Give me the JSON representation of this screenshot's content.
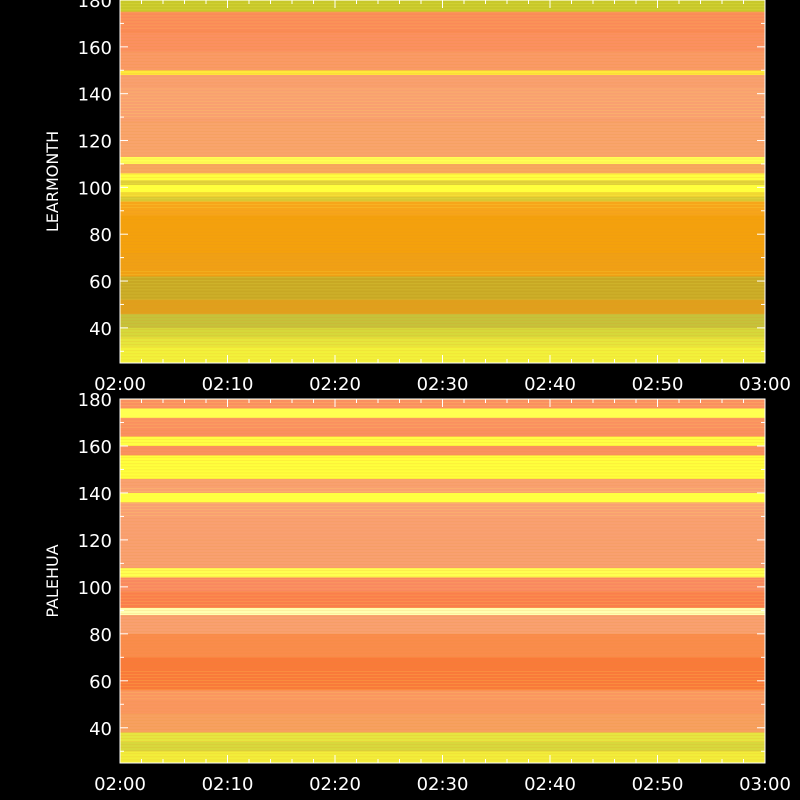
{
  "chart_data": [
    {
      "type": "heatmap",
      "ylabel": "LEARMONTH",
      "x_ticks": [
        "02:00",
        "02:10",
        "02:20",
        "02:30",
        "02:40",
        "02:50",
        "03:00"
      ],
      "xlim": [
        "02:00",
        "03:00"
      ],
      "y_ticks": [
        40,
        60,
        80,
        100,
        120,
        140,
        160,
        180
      ],
      "ylim": [
        25,
        180
      ],
      "grid": false,
      "frequency_bands": [
        {
          "from": 25,
          "to": 32,
          "color": "#f2f23a"
        },
        {
          "from": 32,
          "to": 36,
          "color": "#e6e63c"
        },
        {
          "from": 36,
          "to": 40,
          "color": "#d6d83a"
        },
        {
          "from": 40,
          "to": 46,
          "color": "#c6c23a"
        },
        {
          "from": 46,
          "to": 52,
          "color": "#e0a01c"
        },
        {
          "from": 52,
          "to": 62,
          "color": "#c8a824"
        },
        {
          "from": 62,
          "to": 72,
          "color": "#f0a014"
        },
        {
          "from": 72,
          "to": 88,
          "color": "#f4a10c"
        },
        {
          "from": 88,
          "to": 94,
          "color": "#f7a51a"
        },
        {
          "from": 94,
          "to": 96,
          "color": "#d8c832"
        },
        {
          "from": 96,
          "to": 98,
          "color": "#f2d830"
        },
        {
          "from": 98,
          "to": 101,
          "color": "#ffff3c"
        },
        {
          "from": 101,
          "to": 103,
          "color": "#e0d038"
        },
        {
          "from": 103,
          "to": 106,
          "color": "#ffff40"
        },
        {
          "from": 106,
          "to": 110,
          "color": "#f7a860"
        },
        {
          "from": 110,
          "to": 113,
          "color": "#ffff55"
        },
        {
          "from": 113,
          "to": 128,
          "color": "#f9a46c"
        },
        {
          "from": 128,
          "to": 148,
          "color": "#f9a070"
        },
        {
          "from": 148,
          "to": 150,
          "color": "#ffe83a"
        },
        {
          "from": 150,
          "to": 158,
          "color": "#fa9a66"
        },
        {
          "from": 158,
          "to": 166,
          "color": "#fb9060"
        },
        {
          "from": 166,
          "to": 175,
          "color": "#fa8a58"
        },
        {
          "from": 175,
          "to": 180,
          "color": "#c8c82a"
        }
      ]
    },
    {
      "type": "heatmap",
      "ylabel": "PALEHUA",
      "x_ticks": [
        "02:00",
        "02:10",
        "02:20",
        "02:30",
        "02:40",
        "02:50",
        "03:00"
      ],
      "xlim": [
        "02:00",
        "03:00"
      ],
      "y_ticks": [
        40,
        60,
        80,
        100,
        120,
        140,
        160,
        180
      ],
      "ylim": [
        25,
        180
      ],
      "grid": false,
      "frequency_bands": [
        {
          "from": 25,
          "to": 30,
          "color": "#f2ee3a"
        },
        {
          "from": 30,
          "to": 34,
          "color": "#d8d83c"
        },
        {
          "from": 34,
          "to": 38,
          "color": "#e6e640"
        },
        {
          "from": 38,
          "to": 46,
          "color": "#f7a060"
        },
        {
          "from": 46,
          "to": 56,
          "color": "#fa9660"
        },
        {
          "from": 56,
          "to": 70,
          "color": "#f97a3a"
        },
        {
          "from": 70,
          "to": 80,
          "color": "#fa8c4c"
        },
        {
          "from": 80,
          "to": 88,
          "color": "#f9a070"
        },
        {
          "from": 88,
          "to": 91,
          "color": "#ffffb0"
        },
        {
          "from": 91,
          "to": 98,
          "color": "#fa7e4c"
        },
        {
          "from": 98,
          "to": 104,
          "color": "#f98860"
        },
        {
          "from": 104,
          "to": 108,
          "color": "#ffff50"
        },
        {
          "from": 108,
          "to": 120,
          "color": "#f9a070"
        },
        {
          "from": 120,
          "to": 136,
          "color": "#f9a072"
        },
        {
          "from": 136,
          "to": 140,
          "color": "#ffff40"
        },
        {
          "from": 140,
          "to": 146,
          "color": "#f9a070"
        },
        {
          "from": 146,
          "to": 156,
          "color": "#ffff3c"
        },
        {
          "from": 156,
          "to": 160,
          "color": "#fa9060"
        },
        {
          "from": 160,
          "to": 164,
          "color": "#ffff44"
        },
        {
          "from": 164,
          "to": 172,
          "color": "#fa9060"
        },
        {
          "from": 172,
          "to": 176,
          "color": "#ffff50"
        },
        {
          "from": 176,
          "to": 180,
          "color": "#fa9060"
        }
      ]
    }
  ]
}
